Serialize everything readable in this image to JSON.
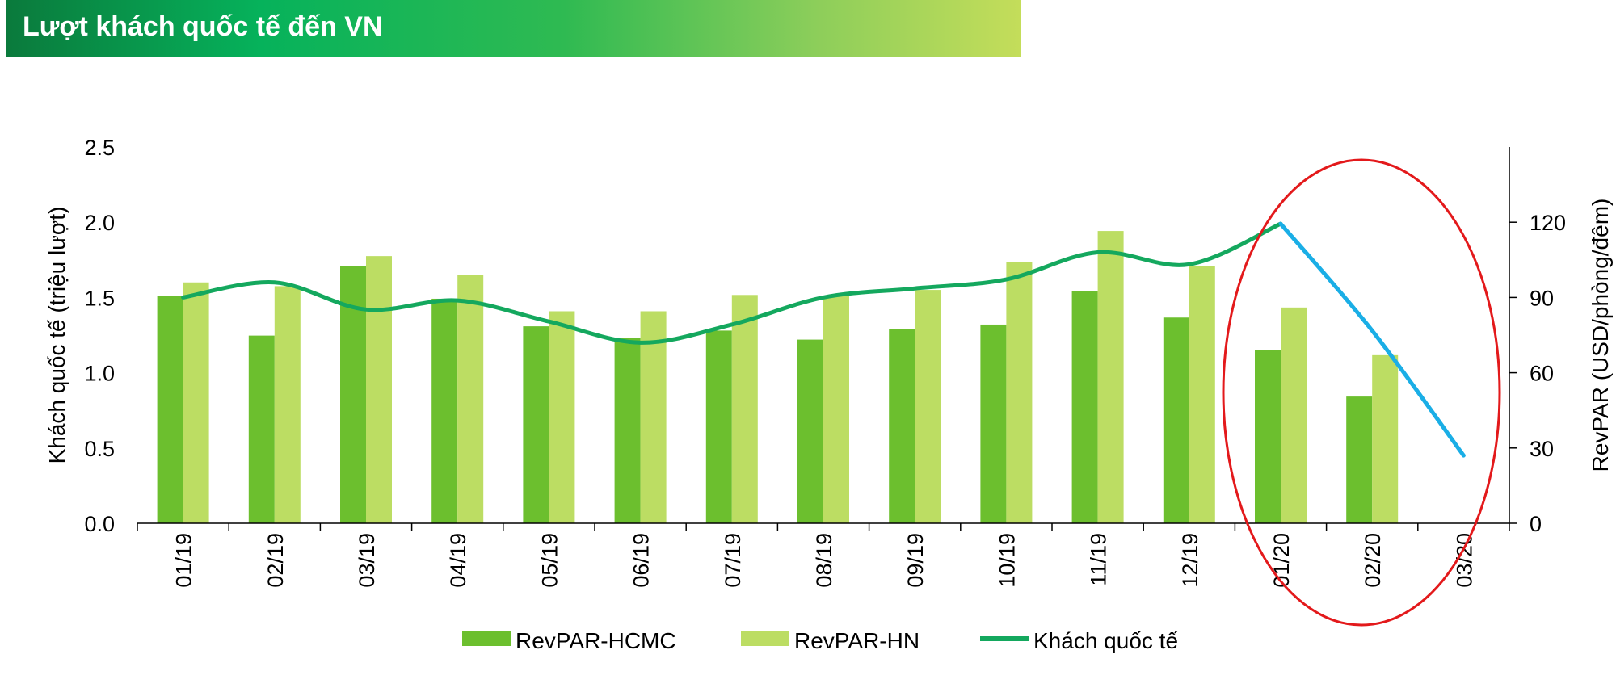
{
  "header": {
    "title": "Lượt khách quốc tế đến VN"
  },
  "chart_data": {
    "type": "bar",
    "categories": [
      "01/19",
      "02/19",
      "03/19",
      "04/19",
      "05/19",
      "06/19",
      "07/19",
      "08/19",
      "09/19",
      "10/19",
      "11/19",
      "12/19",
      "01/20",
      "02/20",
      "03/20"
    ],
    "series": [
      {
        "name": "RevPAR-HCMC",
        "type": "bar",
        "axis": "right",
        "color": "#6cbf2e",
        "values": [
          90.5,
          74.8,
          102.5,
          89.5,
          78.5,
          74.0,
          76.8,
          73.2,
          77.5,
          79.2,
          92.5,
          82.0,
          69.0,
          50.5,
          null
        ]
      },
      {
        "name": "RevPAR-HN",
        "type": "bar",
        "axis": "right",
        "color": "#bcdd63",
        "values": [
          96.0,
          94.5,
          106.5,
          99.0,
          84.5,
          84.5,
          91.0,
          90.5,
          93.0,
          104.0,
          116.5,
          102.5,
          86.0,
          67.0,
          null
        ]
      },
      {
        "name": "Khách quốc tế",
        "type": "line",
        "axis": "left",
        "color": "#14a85e",
        "forecast_color": "#1aaee6",
        "values": [
          1.5,
          1.6,
          1.42,
          1.48,
          1.34,
          1.2,
          1.32,
          1.5,
          1.56,
          1.62,
          1.8,
          1.72,
          1.99,
          1.28,
          0.45
        ]
      }
    ],
    "ylabel_left": "Khách quốc tế (triệu lượt)",
    "ylabel_right": "RevPAR (USD/phòng/đêm)",
    "ylim_left": [
      0,
      2.5
    ],
    "ylim_right": [
      0,
      150
    ],
    "yticks_left": [
      "0.0",
      "0.5",
      "1.0",
      "1.5",
      "2.0",
      "2.5"
    ],
    "yticks_right": [
      "0",
      "30",
      "60",
      "90",
      "120"
    ],
    "yticks_right_values": [
      0,
      30,
      60,
      90,
      120
    ],
    "grid": false,
    "legend_position": "bottom",
    "annotation": {
      "type": "ellipse",
      "color": "#e3191b",
      "covers": [
        "01/20",
        "02/20",
        "03/20"
      ]
    }
  }
}
